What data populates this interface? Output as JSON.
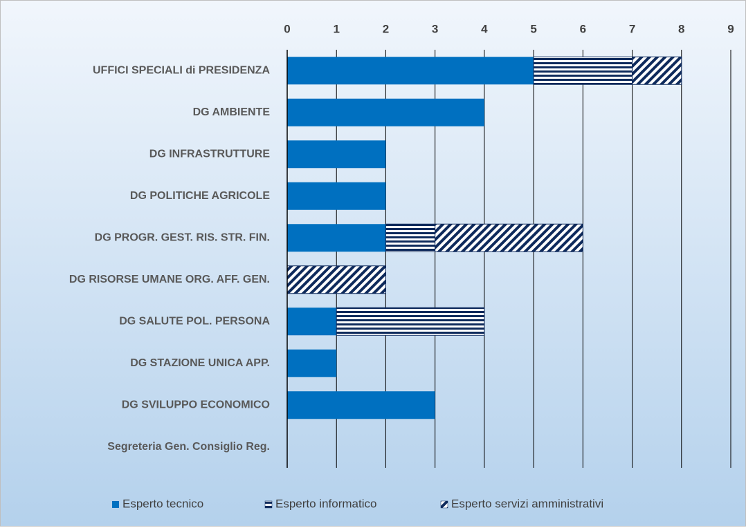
{
  "chart_data": {
    "type": "stacked_bar_horizontal",
    "categories": [
      "UFFICI SPECIALI di PRESIDENZA",
      "DG AMBIENTE",
      "DG INFRASTRUTTURE",
      "DG POLITICHE AGRICOLE",
      "DG PROGR. GEST. RIS. STR. FIN.",
      "DG RISORSE UMANE ORG. AFF. GEN.",
      "DG SALUTE POL. PERSONA",
      "DG STAZIONE UNICA APP.",
      "DG SVILUPPO ECONOMICO",
      "Segreteria Gen. Consiglio Reg."
    ],
    "series": [
      {
        "name": "Esperto tecnico",
        "color": "#0070c0",
        "pattern": "solid",
        "values": [
          5,
          4,
          2,
          2,
          2,
          0,
          1,
          1,
          3,
          0
        ]
      },
      {
        "name": "Esperto informatico",
        "color": "#0e2a5c",
        "pattern": "horizontal",
        "values": [
          2,
          0,
          0,
          0,
          1,
          0,
          3,
          0,
          0,
          0
        ]
      },
      {
        "name": "Esperto servizi amministrativi",
        "color": "#0e2a5c",
        "pattern": "diagonal",
        "values": [
          1,
          0,
          0,
          0,
          3,
          2,
          0,
          0,
          0,
          0
        ]
      }
    ],
    "xlim": [
      0,
      9
    ],
    "xticks": [
      0,
      1,
      2,
      3,
      4,
      5,
      6,
      7,
      8,
      9
    ],
    "grid": true,
    "legend": "bottom"
  }
}
